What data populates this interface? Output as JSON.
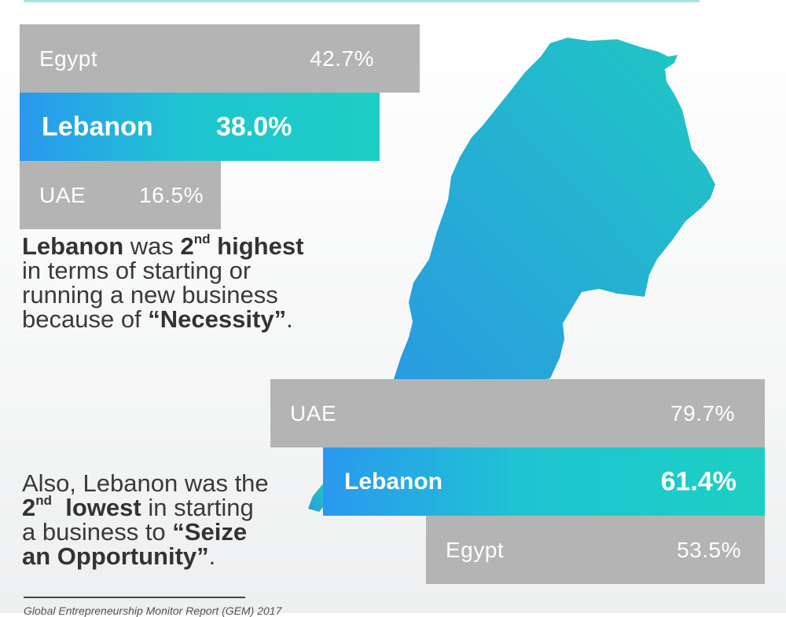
{
  "colors": {
    "bar_gray": "#b4b4b4",
    "highlight_start": "#2a98ef",
    "highlight_end": "#1ccfc3",
    "map_start": "#2a9be0",
    "map_end": "#1fc8c4"
  },
  "chart_data": [
    {
      "type": "bar",
      "orientation": "horizontal",
      "title": "",
      "categories": [
        "Egypt",
        "Lebanon",
        "UAE"
      ],
      "values": [
        42.7,
        38.0,
        16.5
      ],
      "value_labels": [
        "42.7%",
        "38.0%",
        "16.5%"
      ],
      "highlight": "Lebanon",
      "unit": "%"
    },
    {
      "type": "bar",
      "orientation": "horizontal",
      "title": "",
      "categories": [
        "UAE",
        "Lebanon",
        "Egypt"
      ],
      "values": [
        79.7,
        61.4,
        53.5
      ],
      "value_labels": [
        "79.7%",
        "61.4%",
        "53.5%"
      ],
      "highlight": "Lebanon",
      "unit": "%"
    }
  ],
  "necessity_text": {
    "l1_b1": "Lebanon",
    "l1_t1": " was ",
    "l1_b2": "2",
    "l1_sup": "nd",
    "l1_b3": " highest",
    "l2": "in terms of starting or",
    "l3": "running a new business",
    "l4_t1": "because of ",
    "l4_b1": "“Necessity”",
    "l4_t2": "."
  },
  "opportunity_text": {
    "l1": "Also, Lebanon was the",
    "l2_b1": "2",
    "l2_sup": "nd",
    "l2_b2": "  lowest",
    "l2_t1": " in starting",
    "l3_t1": "a business to ",
    "l3_b1": "“Seize",
    "l4_b1": "an Opportunity”",
    "l4_t1": "."
  },
  "source": "Global Entrepreneurship Monitor Report (GEM) 2017"
}
